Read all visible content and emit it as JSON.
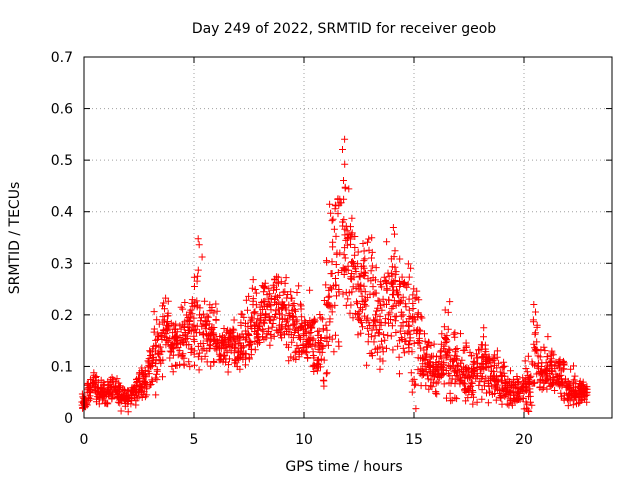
{
  "chart_data": {
    "type": "scatter",
    "title": "Day 249 of 2022, SRMTID for receiver geob",
    "xlabel": "GPS time / hours",
    "ylabel": "SRMTID / TECUs",
    "xlim": [
      0,
      24
    ],
    "ylim": [
      0,
      0.7
    ],
    "xticks": [
      0,
      5,
      10,
      15,
      20
    ],
    "yticks": [
      0,
      0.1,
      0.2,
      0.3,
      0.4,
      0.5,
      0.6,
      0.7
    ],
    "grid": true,
    "marker": "+",
    "color": "#ff0000",
    "series": [
      {
        "name": "SRMTID",
        "x": [
          0.0,
          0.25,
          0.5,
          0.75,
          1.0,
          1.25,
          1.5,
          1.75,
          2.0,
          2.25,
          2.5,
          2.75,
          3.0,
          3.25,
          3.5,
          3.75,
          4.0,
          4.25,
          4.5,
          4.75,
          5.0,
          5.25,
          5.5,
          5.75,
          6.0,
          6.25,
          6.5,
          6.75,
          7.0,
          7.25,
          7.5,
          7.75,
          8.0,
          8.25,
          8.5,
          8.75,
          9.0,
          9.25,
          9.5,
          9.75,
          10.0,
          10.25,
          10.5,
          10.75,
          11.0,
          11.25,
          11.5,
          11.75,
          12.0,
          12.25,
          12.5,
          12.75,
          13.0,
          13.25,
          13.5,
          13.75,
          14.0,
          14.25,
          14.5,
          14.75,
          15.0,
          15.25,
          15.5,
          15.75,
          16.0,
          16.25,
          16.5,
          16.75,
          17.0,
          17.25,
          17.5,
          17.75,
          18.0,
          18.25,
          18.5,
          18.75,
          19.0,
          19.25,
          19.5,
          19.75,
          20.0,
          20.25,
          20.5,
          20.75,
          21.0,
          21.25,
          21.5,
          21.75,
          22.0,
          22.25,
          22.5,
          22.75
        ],
        "y": [
          0.03,
          0.05,
          0.06,
          0.05,
          0.05,
          0.06,
          0.05,
          0.04,
          0.04,
          0.05,
          0.06,
          0.07,
          0.1,
          0.13,
          0.16,
          0.18,
          0.14,
          0.15,
          0.16,
          0.17,
          0.17,
          0.2,
          0.18,
          0.16,
          0.15,
          0.14,
          0.13,
          0.14,
          0.13,
          0.14,
          0.16,
          0.18,
          0.19,
          0.2,
          0.21,
          0.22,
          0.2,
          0.19,
          0.18,
          0.17,
          0.16,
          0.15,
          0.14,
          0.15,
          0.18,
          0.25,
          0.32,
          0.38,
          0.35,
          0.3,
          0.25,
          0.22,
          0.24,
          0.2,
          0.18,
          0.22,
          0.26,
          0.24,
          0.2,
          0.18,
          0.17,
          0.15,
          0.12,
          0.1,
          0.09,
          0.1,
          0.12,
          0.11,
          0.1,
          0.09,
          0.08,
          0.09,
          0.1,
          0.11,
          0.1,
          0.08,
          0.07,
          0.06,
          0.05,
          0.05,
          0.06,
          0.07,
          0.13,
          0.09,
          0.08,
          0.09,
          0.08,
          0.07,
          0.06,
          0.06,
          0.05,
          0.05
        ],
        "spread": [
          0.015,
          0.02,
          0.025,
          0.02,
          0.02,
          0.025,
          0.02,
          0.02,
          0.02,
          0.02,
          0.03,
          0.03,
          0.04,
          0.06,
          0.06,
          0.05,
          0.04,
          0.04,
          0.05,
          0.06,
          0.08,
          0.12,
          0.06,
          0.05,
          0.05,
          0.04,
          0.04,
          0.04,
          0.04,
          0.05,
          0.07,
          0.08,
          0.06,
          0.07,
          0.07,
          0.06,
          0.06,
          0.07,
          0.07,
          0.06,
          0.06,
          0.07,
          0.06,
          0.06,
          0.1,
          0.14,
          0.18,
          0.16,
          0.14,
          0.12,
          0.1,
          0.1,
          0.18,
          0.1,
          0.08,
          0.1,
          0.14,
          0.12,
          0.09,
          0.09,
          0.12,
          0.08,
          0.05,
          0.05,
          0.04,
          0.05,
          0.08,
          0.06,
          0.05,
          0.05,
          0.05,
          0.05,
          0.05,
          0.05,
          0.05,
          0.04,
          0.04,
          0.03,
          0.03,
          0.03,
          0.04,
          0.05,
          0.1,
          0.05,
          0.05,
          0.05,
          0.04,
          0.04,
          0.03,
          0.03,
          0.03,
          0.02
        ]
      }
    ]
  }
}
